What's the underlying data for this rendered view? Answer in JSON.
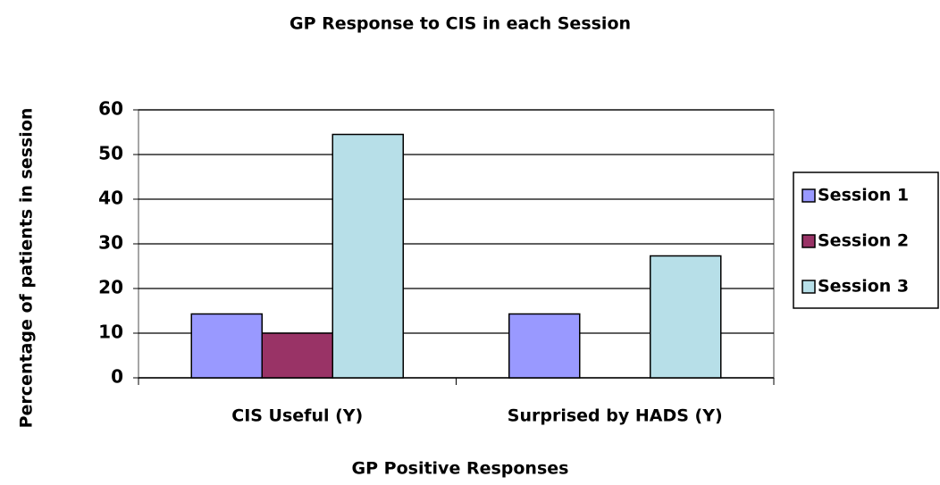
{
  "chart_data": {
    "type": "bar",
    "title": "GP Response to CIS in each Session",
    "x_label": "GP Positive Responses",
    "y_label": "Percentage of patients in session",
    "categories": [
      "CIS Useful (Y)",
      "Surprised by HADS (Y)"
    ],
    "series": [
      {
        "name": "Session 1",
        "color": "#9999ff",
        "values": [
          14.3,
          14.3
        ]
      },
      {
        "name": "Session 2",
        "color": "#993366",
        "values": [
          10,
          0
        ]
      },
      {
        "name": "Session 3",
        "color": "#b7dfe8",
        "values": [
          54.5,
          27.3
        ]
      }
    ],
    "ylim": [
      0,
      60
    ],
    "yticks": [
      0,
      10,
      20,
      30,
      40,
      50,
      60
    ],
    "grid": true,
    "legend": "right"
  }
}
